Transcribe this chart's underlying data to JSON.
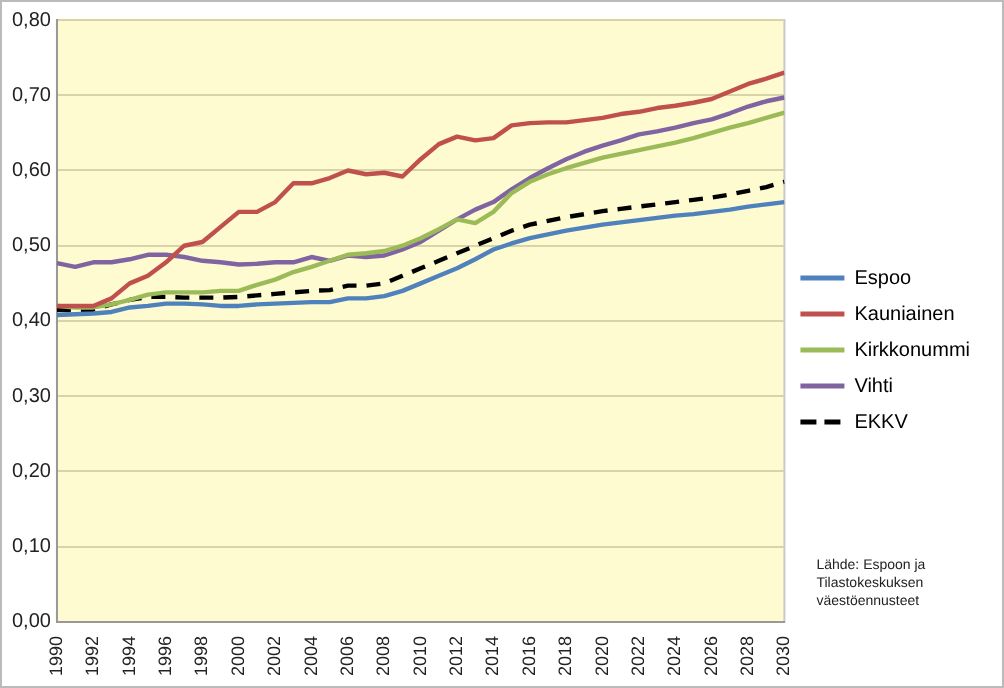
{
  "chart_data": {
    "type": "line",
    "x": [
      1990,
      1991,
      1992,
      1993,
      1994,
      1995,
      1996,
      1997,
      1998,
      1999,
      2000,
      2001,
      2002,
      2003,
      2004,
      2005,
      2006,
      2007,
      2008,
      2009,
      2010,
      2011,
      2012,
      2013,
      2014,
      2015,
      2016,
      2017,
      2018,
      2019,
      2020,
      2021,
      2022,
      2023,
      2024,
      2025,
      2026,
      2027,
      2028,
      2029,
      2030
    ],
    "xlim": [
      1990,
      2030
    ],
    "xticks": [
      1990,
      1992,
      1994,
      1996,
      1998,
      2000,
      2002,
      2004,
      2006,
      2008,
      2010,
      2012,
      2014,
      2016,
      2018,
      2020,
      2022,
      2024,
      2026,
      2028,
      2030
    ],
    "ylim": [
      0,
      0.8
    ],
    "yticks": [
      {
        "value": 0,
        "label": "0,00"
      },
      {
        "value": 0.1,
        "label": "0,10"
      },
      {
        "value": 0.2,
        "label": "0,20"
      },
      {
        "value": 0.3,
        "label": "0,30"
      },
      {
        "value": 0.4,
        "label": "0,40"
      },
      {
        "value": 0.5,
        "label": "0,50"
      },
      {
        "value": 0.6,
        "label": "0,60"
      },
      {
        "value": 0.7,
        "label": "0,70"
      },
      {
        "value": 0.8,
        "label": "0,80"
      }
    ],
    "grid": "y",
    "legend": "right",
    "marker": "none",
    "series": [
      {
        "name": "Espoo",
        "color": "#4f81bd",
        "values": [
          0.408,
          0.409,
          0.41,
          0.412,
          0.418,
          0.42,
          0.423,
          0.423,
          0.422,
          0.42,
          0.42,
          0.422,
          0.423,
          0.424,
          0.425,
          0.425,
          0.43,
          0.43,
          0.433,
          0.44,
          0.45,
          0.46,
          0.47,
          0.482,
          0.495,
          0.503,
          0.51,
          0.515,
          0.52,
          0.524,
          0.528,
          0.531,
          0.534,
          0.537,
          0.54,
          0.542,
          0.545,
          0.548,
          0.552,
          0.555,
          0.558
        ]
      },
      {
        "name": "Kauniainen",
        "color": "#c0504d",
        "values": [
          0.42,
          0.42,
          0.42,
          0.43,
          0.45,
          0.46,
          0.478,
          0.5,
          0.505,
          0.525,
          0.545,
          0.545,
          0.558,
          0.583,
          0.583,
          0.59,
          0.6,
          0.595,
          0.597,
          0.592,
          0.615,
          0.635,
          0.645,
          0.64,
          0.643,
          0.66,
          0.663,
          0.664,
          0.664,
          0.667,
          0.67,
          0.675,
          0.678,
          0.683,
          0.686,
          0.69,
          0.695,
          0.705,
          0.715,
          0.722,
          0.73
        ]
      },
      {
        "name": "Kirkkonummi",
        "color": "#9bbb59",
        "values": [
          0.42,
          0.418,
          0.418,
          0.422,
          0.428,
          0.435,
          0.438,
          0.438,
          0.438,
          0.44,
          0.44,
          0.448,
          0.455,
          0.465,
          0.472,
          0.48,
          0.488,
          0.49,
          0.493,
          0.5,
          0.51,
          0.522,
          0.535,
          0.53,
          0.545,
          0.57,
          0.585,
          0.595,
          0.603,
          0.61,
          0.617,
          0.622,
          0.627,
          0.632,
          0.637,
          0.643,
          0.65,
          0.657,
          0.663,
          0.67,
          0.677
        ]
      },
      {
        "name": "Vihti",
        "color": "#8064a2",
        "values": [
          0.477,
          0.472,
          0.478,
          0.478,
          0.482,
          0.488,
          0.488,
          0.485,
          0.48,
          0.478,
          0.475,
          0.476,
          0.478,
          0.478,
          0.485,
          0.48,
          0.487,
          0.485,
          0.487,
          0.495,
          0.505,
          0.52,
          0.535,
          0.548,
          0.558,
          0.575,
          0.59,
          0.603,
          0.615,
          0.625,
          0.633,
          0.64,
          0.648,
          0.652,
          0.657,
          0.663,
          0.668,
          0.676,
          0.685,
          0.692,
          0.697
        ]
      },
      {
        "name": "EKKV",
        "color": "#000000",
        "line_style": "dashed",
        "values": [
          0.415,
          0.414,
          0.415,
          0.422,
          0.428,
          0.432,
          0.432,
          0.431,
          0.431,
          0.431,
          0.432,
          0.434,
          0.436,
          0.438,
          0.44,
          0.441,
          0.447,
          0.447,
          0.45,
          0.46,
          0.47,
          0.48,
          0.49,
          0.5,
          0.51,
          0.52,
          0.528,
          0.533,
          0.538,
          0.542,
          0.546,
          0.549,
          0.552,
          0.555,
          0.558,
          0.561,
          0.564,
          0.568,
          0.573,
          0.578,
          0.585
        ]
      }
    ],
    "annotations": [
      "Lähde: Espoon ja Tilastokeskuksen väestöennusteet"
    ]
  }
}
